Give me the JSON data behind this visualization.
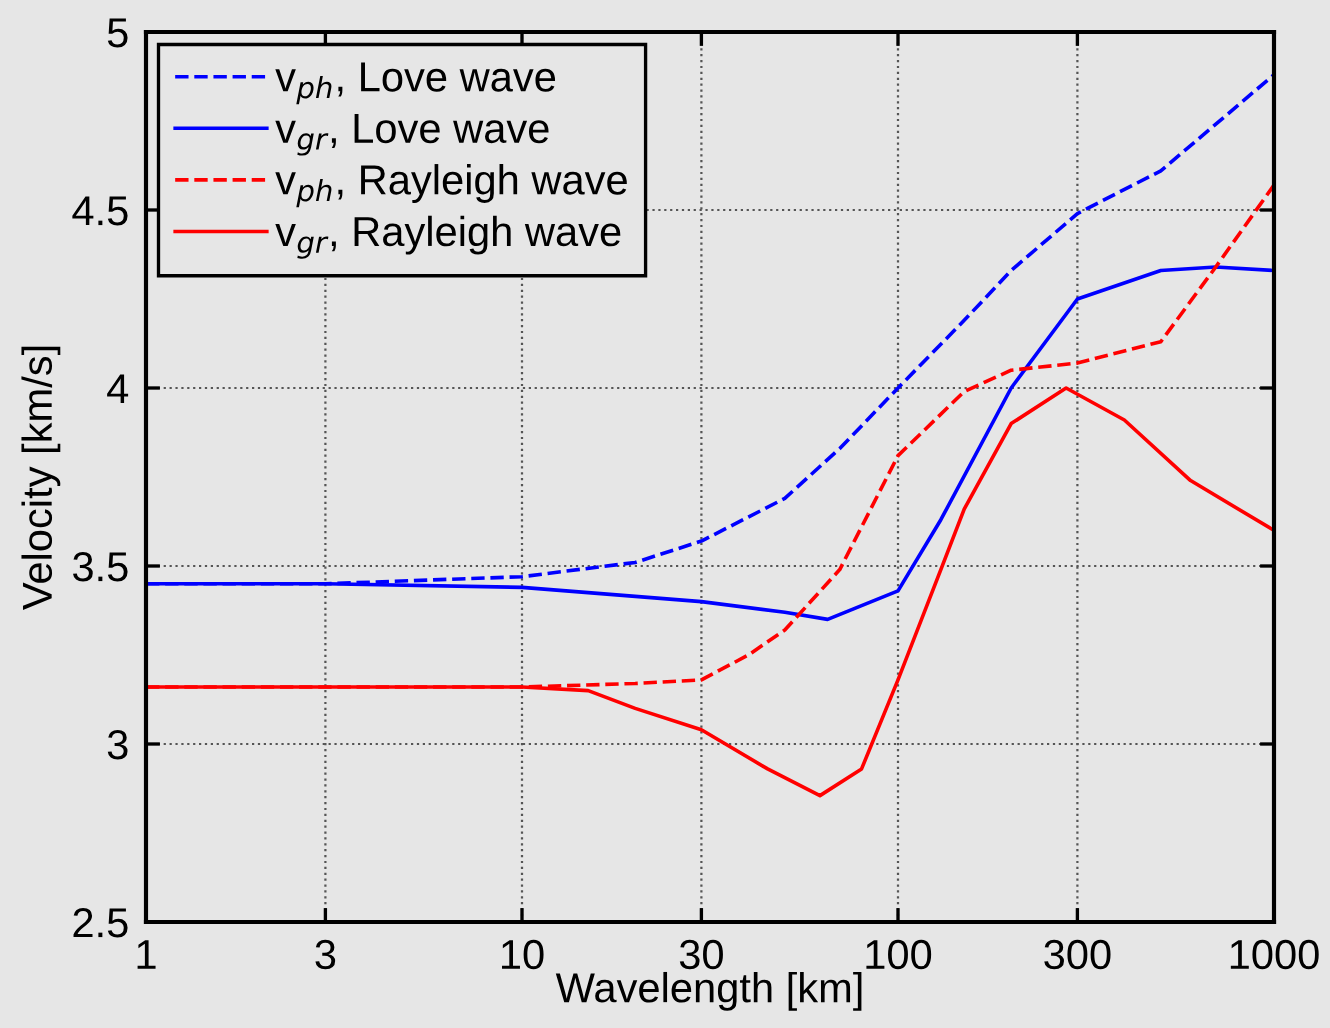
{
  "chart_data": {
    "type": "line",
    "xlabel": "Wavelength [km]",
    "ylabel": "Velocity [km/s]",
    "log": "x",
    "xlim": [
      1,
      1000
    ],
    "xticks": [
      1,
      3,
      10,
      30,
      100,
      300,
      1000
    ],
    "ylim": [
      2.5,
      5
    ],
    "yticks": [
      2.5,
      3,
      3.5,
      4,
      4.5,
      5
    ],
    "grid": true,
    "legend": "top left",
    "series": [
      {
        "name": "v$_{ph}$, Love wave",
        "color": "#0000ff",
        "line_style": "dashed",
        "x": [
          1,
          3,
          10,
          20,
          30,
          50,
          70,
          100,
          150,
          200,
          300,
          500,
          1000
        ],
        "values": [
          3.45,
          3.45,
          3.47,
          3.51,
          3.57,
          3.69,
          3.83,
          4.0,
          4.19,
          4.33,
          4.49,
          4.61,
          4.88
        ]
      },
      {
        "name": "v$_{gr}$, Love wave",
        "color": "#0000ff",
        "line_style": "solid",
        "x": [
          1,
          3,
          10,
          30,
          50,
          65,
          100,
          130,
          200,
          300,
          500,
          700,
          1000
        ],
        "values": [
          3.45,
          3.45,
          3.44,
          3.4,
          3.37,
          3.35,
          3.43,
          3.63,
          4.0,
          4.25,
          4.33,
          4.34,
          4.33
        ]
      },
      {
        "name": "v$_{ph}$, Rayleigh wave",
        "color": "#ff0000",
        "line_style": "dashed",
        "x": [
          1,
          3,
          10,
          20,
          30,
          40,
          50,
          70,
          100,
          150,
          200,
          300,
          500,
          700,
          1000
        ],
        "values": [
          3.16,
          3.16,
          3.16,
          3.17,
          3.18,
          3.25,
          3.32,
          3.49,
          3.81,
          3.99,
          4.05,
          4.07,
          4.13,
          4.34,
          4.57
        ]
      },
      {
        "name": "v$_{gr}$, Rayleigh wave",
        "color": "#ff0000",
        "line_style": "solid",
        "x": [
          1,
          3,
          10,
          15,
          20,
          30,
          45,
          62,
          80,
          100,
          130,
          150,
          200,
          280,
          400,
          600,
          1000
        ],
        "values": [
          3.16,
          3.16,
          3.16,
          3.15,
          3.1,
          3.04,
          2.93,
          2.855,
          2.93,
          3.18,
          3.49,
          3.66,
          3.9,
          4.0,
          3.91,
          3.74,
          3.6
        ]
      }
    ]
  }
}
